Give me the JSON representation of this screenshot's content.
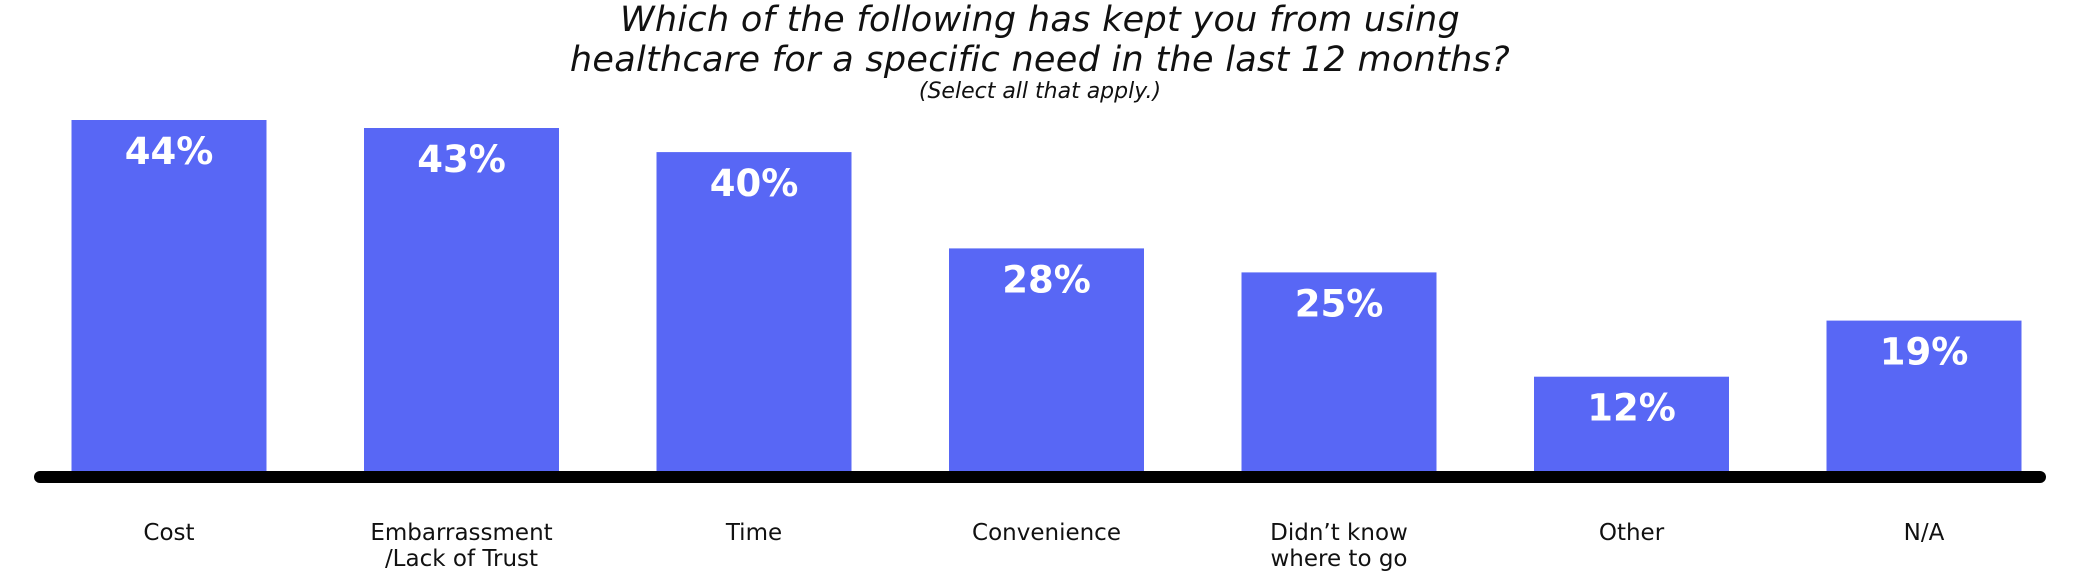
{
  "chart_data": {
    "type": "bar",
    "title_lines": [
      "Which of the following has kept you from using",
      "healthcare for a specific need in the last 12 months?"
    ],
    "subtitle": "(Select all that apply.)",
    "categories": [
      [
        "Cost"
      ],
      [
        "Embarrassment",
        "/Lack of Trust"
      ],
      [
        "Time"
      ],
      [
        "Convenience"
      ],
      [
        "Didn’t know",
        "where to go"
      ],
      [
        "Other"
      ],
      [
        "N/A"
      ]
    ],
    "values": [
      44,
      43,
      40,
      28,
      25,
      12,
      19
    ],
    "value_labels": [
      "44%",
      "43%",
      "40%",
      "28%",
      "25%",
      "12%",
      "19%"
    ],
    "ylim": [
      0,
      44
    ],
    "grid": false,
    "colors": {
      "bar": "#5867F5",
      "axis": "#000000",
      "value_text": "#ffffff",
      "text": "#111111"
    }
  }
}
